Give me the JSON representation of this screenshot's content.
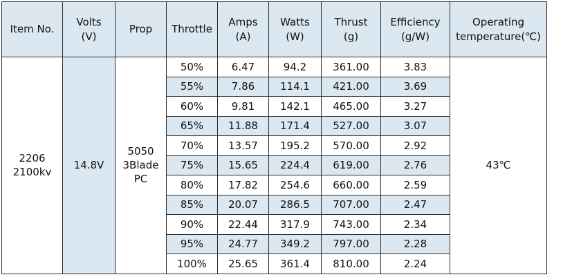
{
  "table": {
    "headers": [
      {
        "line1": "Item No.",
        "line2": ""
      },
      {
        "line1": "Volts",
        "line2": "(V)"
      },
      {
        "line1": "Prop",
        "line2": ""
      },
      {
        "line1": "Throttle",
        "line2": ""
      },
      {
        "line1": "Amps",
        "line2": "(A)"
      },
      {
        "line1": "Watts",
        "line2": "(W)"
      },
      {
        "line1": "Thrust",
        "line2": "(g)"
      },
      {
        "line1": "Efficiency",
        "line2": "(g/W)"
      },
      {
        "line1": "Operating",
        "line2": "temperature(℃)"
      }
    ],
    "item_no": {
      "line1": "2206",
      "line2": "2100kv"
    },
    "volts": "14.8V",
    "prop": {
      "line1": "5050",
      "line2": "3Blade",
      "line3": "PC"
    },
    "operating_temperature": "43℃",
    "rows": [
      {
        "throttle": "50%",
        "amps": "6.47",
        "watts": "94.2",
        "thrust": "361.00",
        "efficiency": "3.83"
      },
      {
        "throttle": "55%",
        "amps": "7.86",
        "watts": "114.1",
        "thrust": "421.00",
        "efficiency": "3.69"
      },
      {
        "throttle": "60%",
        "amps": "9.81",
        "watts": "142.1",
        "thrust": "465.00",
        "efficiency": "3.27"
      },
      {
        "throttle": "65%",
        "amps": "11.88",
        "watts": "171.4",
        "thrust": "527.00",
        "efficiency": "3.07"
      },
      {
        "throttle": "70%",
        "amps": "13.57",
        "watts": "195.2",
        "thrust": "570.00",
        "efficiency": "2.92"
      },
      {
        "throttle": "75%",
        "amps": "15.65",
        "watts": "224.4",
        "thrust": "619.00",
        "efficiency": "2.76"
      },
      {
        "throttle": "80%",
        "amps": "17.82",
        "watts": "254.6",
        "thrust": "660.00",
        "efficiency": "2.59"
      },
      {
        "throttle": "85%",
        "amps": "20.07",
        "watts": "286.5",
        "thrust": "707.00",
        "efficiency": "2.47"
      },
      {
        "throttle": "90%",
        "amps": "22.44",
        "watts": "317.9",
        "thrust": "743.00",
        "efficiency": "2.34"
      },
      {
        "throttle": "95%",
        "amps": "24.77",
        "watts": "349.2",
        "thrust": "797.00",
        "efficiency": "2.28"
      },
      {
        "throttle": "100%",
        "amps": "25.65",
        "watts": "361.4",
        "thrust": "810.00",
        "efficiency": "2.24"
      }
    ]
  },
  "colors": {
    "header_fill": "#dbe8f1",
    "stripe_fill": "#dbe8f1",
    "border": "#2b2b2b"
  }
}
